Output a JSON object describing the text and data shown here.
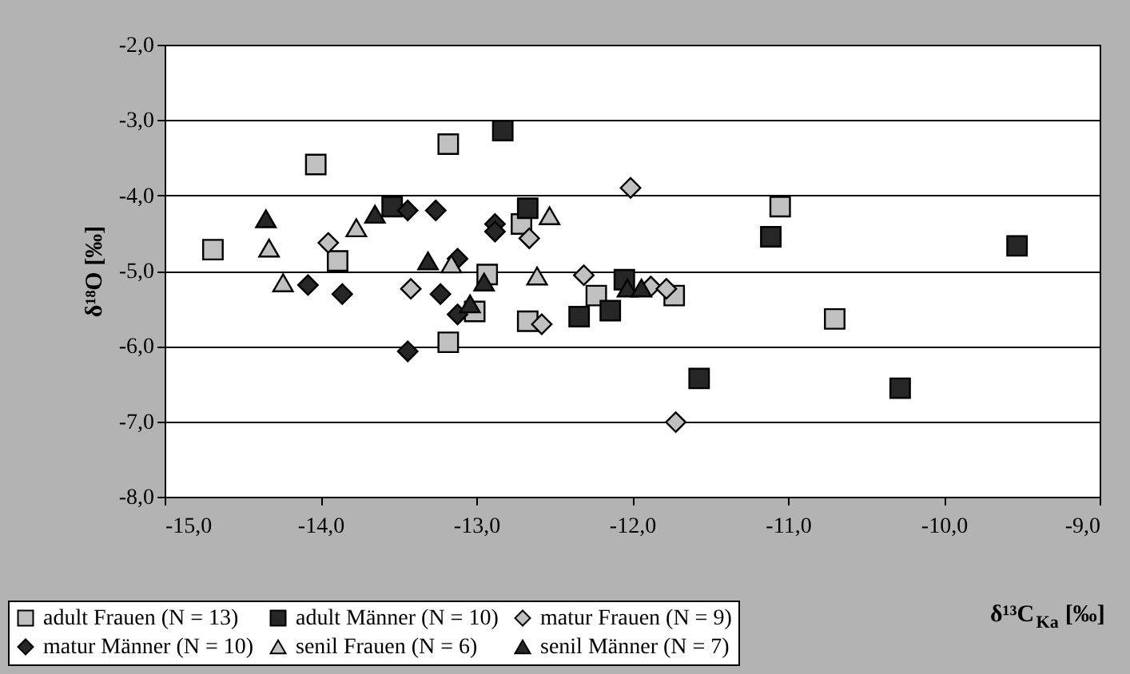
{
  "chart_data": {
    "type": "scatter",
    "xlabel": "δ¹³C$_{Ka}$ [‰]",
    "ylabel": "δ¹⁸O [‰]",
    "xlim": [
      -15,
      -9
    ],
    "ylim": [
      -8,
      -2
    ],
    "xticks": [
      {
        "value": -15,
        "label": "-15,0"
      },
      {
        "value": -14,
        "label": "-14,0"
      },
      {
        "value": -13,
        "label": "-13,0"
      },
      {
        "value": -12,
        "label": "-12,0"
      },
      {
        "value": -11,
        "label": "-11,0"
      },
      {
        "value": -10,
        "label": "-10,0"
      },
      {
        "value": -9,
        "label": "-9,0"
      }
    ],
    "yticks": [
      {
        "value": -8,
        "label": "-8,0"
      },
      {
        "value": -7,
        "label": "-7,0"
      },
      {
        "value": -6,
        "label": "-6,0"
      },
      {
        "value": -5,
        "label": "-5,0"
      },
      {
        "value": -4,
        "label": "-4,0"
      },
      {
        "value": -3,
        "label": "-3,0"
      },
      {
        "value": -2,
        "label": "-2,0"
      }
    ],
    "grid": "y",
    "legend": "bottom left",
    "series": [
      {
        "name": "adult Frauen (N = 13)",
        "color": "#c0c0c0",
        "marker": "square",
        "x": [
          -14.69,
          -14.03,
          -13.89,
          -13.18,
          -13.18,
          -13.01,
          -12.93,
          -12.71,
          -12.67,
          -12.23,
          -11.73,
          -11.05,
          -10.7
        ],
        "values": [
          -4.72,
          -3.59,
          -4.87,
          -3.32,
          -5.95,
          -5.54,
          -5.05,
          -4.38,
          -5.67,
          -5.33,
          -5.33,
          -4.15,
          -5.64
        ]
      },
      {
        "name": "adult Männer (N = 10)",
        "color": "#262626",
        "marker": "square",
        "x": [
          -13.54,
          -12.83,
          -12.67,
          -12.34,
          -12.14,
          -12.05,
          -11.57,
          -11.11,
          -10.28,
          -9.53
        ],
        "values": [
          -4.15,
          -3.14,
          -4.17,
          -5.61,
          -5.53,
          -5.12,
          -6.43,
          -4.55,
          -6.56,
          -4.67
        ]
      },
      {
        "name": "matur Frauen (N = 9)",
        "color": "#c0c0c0",
        "marker": "diamond",
        "x": [
          -13.95,
          -13.42,
          -12.66,
          -12.58,
          -12.31,
          -12.01,
          -11.88,
          -11.78,
          -11.72
        ],
        "values": [
          -4.63,
          -5.24,
          -4.57,
          -5.71,
          -5.06,
          -3.9,
          -5.21,
          -5.24,
          -7.01
        ]
      },
      {
        "name": "matur Männer (N = 10)",
        "color": "#262626",
        "marker": "diamond",
        "x": [
          -14.08,
          -13.86,
          -13.44,
          -13.26,
          -13.44,
          -13.23,
          -13.12,
          -13.12,
          -12.88,
          -12.88
        ],
        "values": [
          -5.19,
          -5.31,
          -4.2,
          -4.2,
          -6.07,
          -5.31,
          -5.58,
          -4.84,
          -4.38,
          -4.48
        ]
      },
      {
        "name": "senil Frauen (N = 6)",
        "color": "#c0c0c0",
        "marker": "triangle",
        "x": [
          -14.33,
          -14.24,
          -13.77,
          -13.16,
          -12.61,
          -12.53
        ],
        "values": [
          -4.7,
          -5.16,
          -4.43,
          -4.91,
          -5.07,
          -4.27
        ]
      },
      {
        "name": "senil Männer (N = 7)",
        "color": "#262626",
        "marker": "triangle",
        "x": [
          -14.35,
          -13.65,
          -13.31,
          -13.04,
          -12.95,
          -12.03,
          -11.94
        ],
        "values": [
          -4.31,
          -4.25,
          -4.87,
          -5.44,
          -5.15,
          -5.23,
          -5.23
        ]
      }
    ]
  }
}
